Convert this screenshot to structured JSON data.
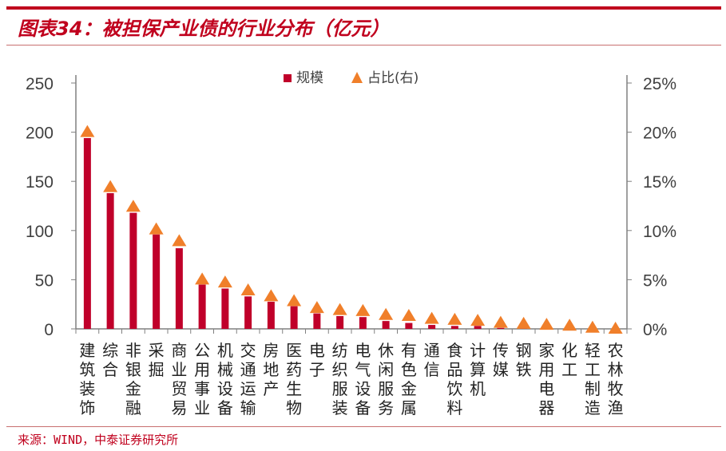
{
  "title": "图表34：被担保产业债的行业分布（亿元）",
  "source": "来源：WIND，中泰证券研究所",
  "colors": {
    "bar": "#c0002a",
    "marker": "#f07f2a",
    "accent": "#c0001d"
  },
  "chart_data": {
    "type": "bar+scatter",
    "legend_position": "top-center",
    "grid": false,
    "categories": [
      "建筑装饰",
      "综合",
      "非银金融",
      "采掘",
      "商业贸易",
      "公用事业",
      "机械设备",
      "交通运输",
      "房地产",
      "医药生物",
      "电子",
      "纺织服装",
      "电气设备",
      "休闲服务",
      "有色金属",
      "通信",
      "食品饮料",
      "计算机",
      "传媒",
      "钢铁",
      "家用电器",
      "化工",
      "轻工制造",
      "农林牧渔"
    ],
    "series": [
      {
        "name": "规模",
        "type": "bar",
        "axis": "left",
        "values": [
          194,
          138,
          118,
          96,
          82,
          45,
          41,
          33,
          27.6,
          23,
          15.7,
          13,
          12,
          8,
          6,
          4,
          3,
          3,
          1,
          0.5,
          0.5,
          0.5,
          0.3,
          0.2
        ]
      },
      {
        "name": "占比(右)",
        "type": "triangle-marker",
        "axis": "right",
        "values": [
          20.0,
          14.4,
          12.4,
          10.1,
          8.9,
          5.0,
          4.7,
          3.9,
          3.3,
          2.8,
          2.1,
          1.9,
          1.8,
          1.4,
          1.3,
          1.0,
          0.9,
          0.8,
          0.6,
          0.5,
          0.4,
          0.3,
          0.1,
          0.0
        ]
      }
    ],
    "left_axis": {
      "ylim": [
        0,
        250
      ],
      "ticks": [
        "0",
        "50",
        "100",
        "150",
        "200",
        "250"
      ]
    },
    "right_axis": {
      "ylim": [
        0,
        25
      ],
      "ticks": [
        "0%",
        "5%",
        "10%",
        "15%",
        "20%",
        "25%"
      ]
    }
  }
}
